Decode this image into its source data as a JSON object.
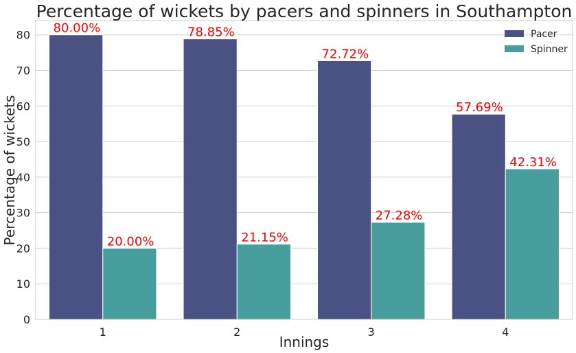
{
  "chart_data": {
    "type": "bar",
    "title": "Percentage of wickets by pacers and spinners in Southampton",
    "xlabel": "Innings",
    "ylabel": "Percentage of wickets",
    "categories": [
      "1",
      "2",
      "3",
      "4"
    ],
    "ylim": [
      0,
      84
    ],
    "yticks": [
      0,
      10,
      20,
      30,
      40,
      50,
      60,
      70,
      80
    ],
    "grid": true,
    "legend_position": "top-right",
    "series": [
      {
        "name": "Pacer",
        "color": "#4a5183",
        "values": [
          80.0,
          78.85,
          72.72,
          57.69
        ],
        "labels": [
          "80.00%",
          "78.85%",
          "72.72%",
          "57.69%"
        ]
      },
      {
        "name": "Spinner",
        "color": "#489d9d",
        "values": [
          20.0,
          21.15,
          27.28,
          42.31
        ],
        "labels": [
          "20.00%",
          "21.15%",
          "27.28%",
          "42.31%"
        ]
      }
    ],
    "label_color": "#ff0000"
  }
}
